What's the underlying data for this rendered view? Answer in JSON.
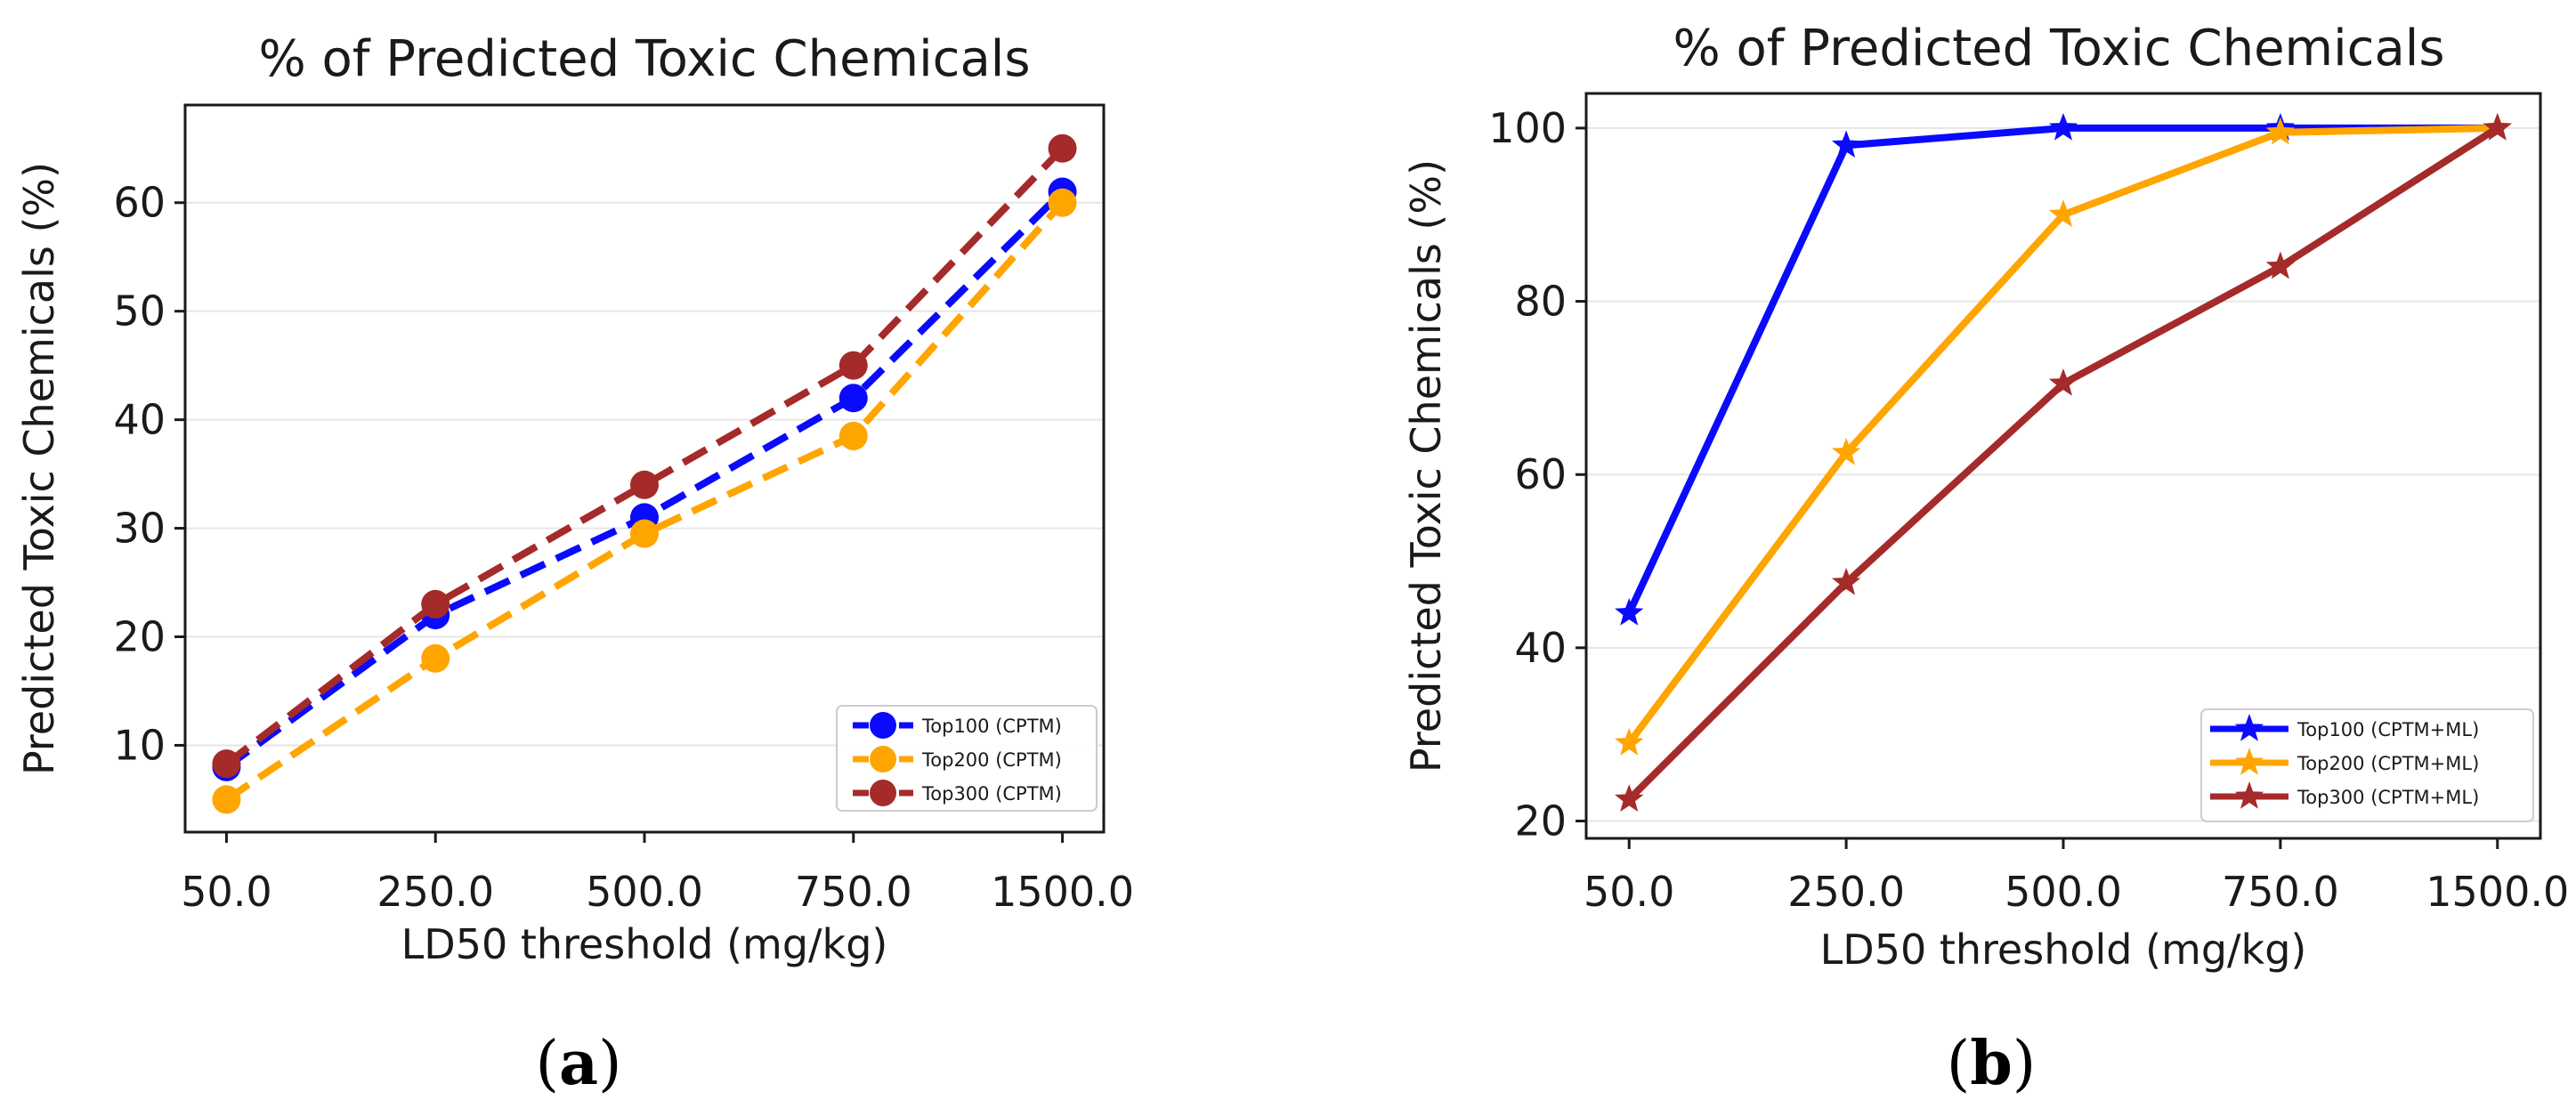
{
  "chart_data": [
    {
      "type": "line",
      "panel_label": {
        "open": "(",
        "letter": "a",
        "close": ")"
      },
      "title": "% of Predicted Toxic Chemicals",
      "xlabel": "LD50 threshold (mg/kg)",
      "ylabel": "Predicted Toxic Chemicals (%)",
      "categories": [
        "50.0",
        "250.0",
        "500.0",
        "750.0",
        "1500.0"
      ],
      "ylim": [
        2,
        69
      ],
      "yticks": [
        10,
        20,
        30,
        40,
        50,
        60
      ],
      "grid": "horizontal",
      "legend_position": "bottom-right",
      "line_style": "dashed",
      "marker": "circle",
      "series": [
        {
          "name": "Top100 (CPTM)",
          "color": "#0a0aff",
          "values": [
            8,
            22,
            31,
            42,
            61
          ]
        },
        {
          "name": "Top200 (CPTM)",
          "color": "#ffa500",
          "values": [
            5,
            18,
            29.5,
            38.5,
            60
          ]
        },
        {
          "name": "Top300 (CPTM)",
          "color": "#a52a2a",
          "values": [
            8.3,
            23,
            34,
            45,
            65
          ]
        }
      ]
    },
    {
      "type": "line",
      "panel_label": {
        "open": "(",
        "letter": "b",
        "close": ")"
      },
      "title": "% of Predicted Toxic Chemicals",
      "xlabel": "LD50 threshold (mg/kg)",
      "ylabel": "Predicted Toxic Chemicals (%)",
      "categories": [
        "50.0",
        "250.0",
        "500.0",
        "750.0",
        "1500.0"
      ],
      "ylim": [
        18,
        104
      ],
      "yticks": [
        20,
        40,
        60,
        80,
        100
      ],
      "grid": "horizontal",
      "legend_position": "bottom-right",
      "line_style": "solid",
      "marker": "star",
      "series": [
        {
          "name": "Top100 (CPTM+ML)",
          "color": "#0a0aff",
          "values": [
            44,
            98,
            100,
            100,
            100
          ]
        },
        {
          "name": "Top200 (CPTM+ML)",
          "color": "#ffa500",
          "values": [
            29,
            62.5,
            90,
            99.5,
            100
          ]
        },
        {
          "name": "Top300 (CPTM+ML)",
          "color": "#a52a2a",
          "values": [
            22.5,
            47.5,
            70.5,
            84,
            100
          ]
        }
      ]
    }
  ]
}
